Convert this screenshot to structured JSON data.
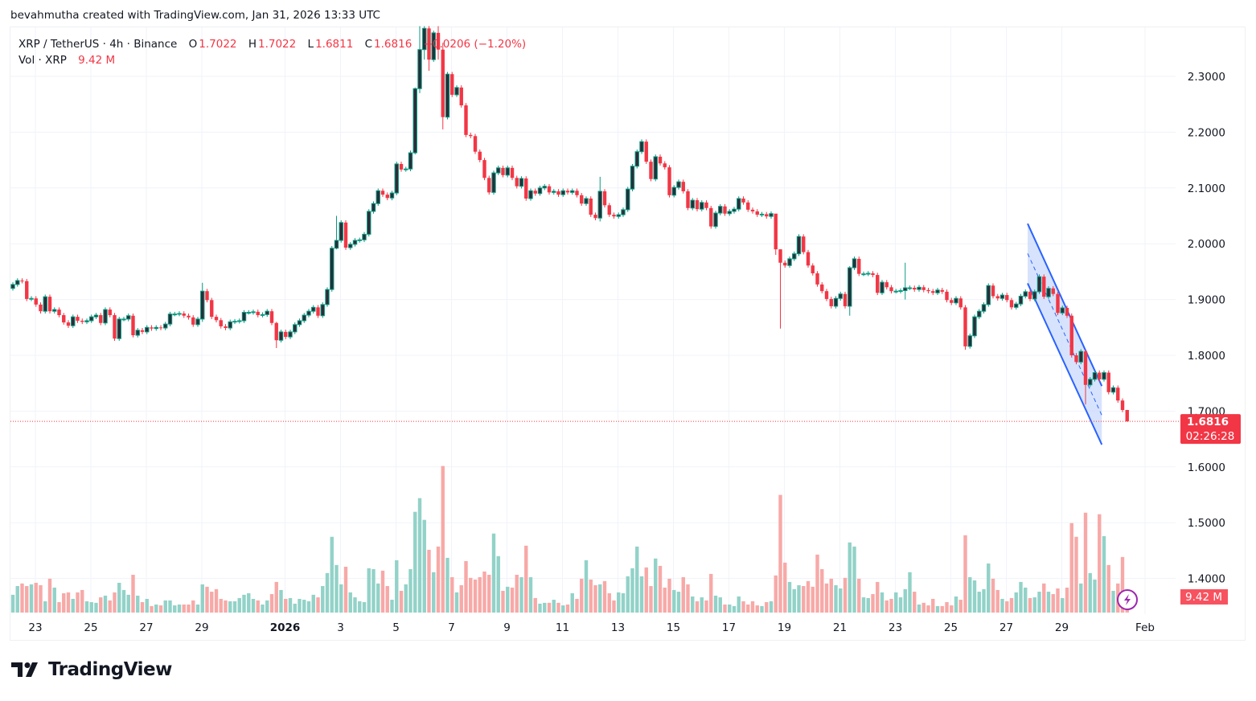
{
  "credit": "bevahmutha created with TradingView.com, Jan 31, 2026 13:33 UTC",
  "legend": {
    "symbol": "XRP / TetherUS · 4h · Binance",
    "o_label": "O",
    "o_value": "1.7022",
    "h_label": "H",
    "h_value": "1.7022",
    "l_label": "L",
    "l_value": "1.6811",
    "c_label": "C",
    "c_value": "1.6816",
    "change": "−0.0206 (−1.20%)",
    "vol_label": "Vol · XRP",
    "vol_value": "9.42 M"
  },
  "logo_text": "TradingView",
  "colors": {
    "up": "#089981",
    "up_body": "#2a2e39",
    "down": "#f23645",
    "vol_up": "#92d2c8",
    "vol_down": "#f7a9a7",
    "channel": "#2962ff",
    "channel_fill": "#c9d9fb",
    "last_price": "#f23645",
    "alert_icon": "#9c27b0"
  },
  "chart_data": {
    "type": "candlestick",
    "interval": "4h",
    "first_candle_open": 1.92,
    "close": [
      1.927,
      1.934,
      1.933,
      1.901,
      1.902,
      1.891,
      1.879,
      1.905,
      1.879,
      1.882,
      1.872,
      1.859,
      1.853,
      1.869,
      1.862,
      1.86,
      1.862,
      1.869,
      1.872,
      1.858,
      1.882,
      1.872,
      1.83,
      1.865,
      1.865,
      1.871,
      1.836,
      1.845,
      1.842,
      1.85,
      1.848,
      1.85,
      1.849,
      1.856,
      1.874,
      1.874,
      1.875,
      1.871,
      1.868,
      1.855,
      1.865,
      1.915,
      1.899,
      1.869,
      1.863,
      1.852,
      1.849,
      1.86,
      1.861,
      1.862,
      1.877,
      1.877,
      1.878,
      1.872,
      1.873,
      1.879,
      1.858,
      1.827,
      1.842,
      1.833,
      1.842,
      1.855,
      1.862,
      1.872,
      1.879,
      1.886,
      1.871,
      1.891,
      1.918,
      1.992,
      2.006,
      2.038,
      1.993,
      1.999,
      2.006,
      2.007,
      2.017,
      2.058,
      2.072,
      2.095,
      2.088,
      2.082,
      2.091,
      2.143,
      2.133,
      2.134,
      2.163,
      2.278,
      2.348,
      2.386,
      2.33,
      2.378,
      2.348,
      2.227,
      2.304,
      2.267,
      2.28,
      2.248,
      2.195,
      2.193,
      2.165,
      2.15,
      2.118,
      2.092,
      2.127,
      2.136,
      2.123,
      2.136,
      2.118,
      2.103,
      2.117,
      2.081,
      2.095,
      2.09,
      2.1,
      2.103,
      2.092,
      2.094,
      2.088,
      2.095,
      2.092,
      2.095,
      2.087,
      2.072,
      2.081,
      2.052,
      2.046,
      2.094,
      2.069,
      2.052,
      2.049,
      2.052,
      2.061,
      2.098,
      2.139,
      2.165,
      2.183,
      2.147,
      2.116,
      2.156,
      2.144,
      2.137,
      2.087,
      2.101,
      2.111,
      2.094,
      2.064,
      2.078,
      2.062,
      2.074,
      2.064,
      2.031,
      2.055,
      2.067,
      2.054,
      2.058,
      2.062,
      2.081,
      2.074,
      2.061,
      2.058,
      2.052,
      2.053,
      2.049,
      2.054,
      1.99,
      1.966,
      1.961,
      1.973,
      1.982,
      2.013,
      1.985,
      1.961,
      1.947,
      1.927,
      1.915,
      1.901,
      1.888,
      1.902,
      1.91,
      1.888,
      1.957,
      1.973,
      1.946,
      1.946,
      1.947,
      1.944,
      1.912,
      1.931,
      1.922,
      1.915,
      1.915,
      1.916,
      1.921,
      1.921,
      1.918,
      1.922,
      1.917,
      1.915,
      1.912,
      1.917,
      1.914,
      1.899,
      1.894,
      1.902,
      1.886,
      1.816,
      1.835,
      1.869,
      1.879,
      1.891,
      1.925,
      1.906,
      1.902,
      1.908,
      1.899,
      1.886,
      1.892,
      1.906,
      1.914,
      1.901,
      1.914,
      1.941,
      1.905,
      1.92,
      1.91,
      1.876,
      1.885,
      1.871,
      1.8,
      1.788,
      1.807,
      1.747,
      1.757,
      1.769,
      1.757,
      1.769,
      1.734,
      1.742,
      1.719,
      1.702,
      1.6816
    ],
    "wicks": {
      "42": [
        1.93,
        1.86
      ],
      "58": [
        1.86,
        1.813
      ],
      "71": [
        2.05,
        1.99
      ],
      "88": [
        2.28,
        2.16
      ],
      "89": [
        2.39,
        2.27
      ],
      "90": [
        2.39,
        2.33
      ],
      "91": [
        2.39,
        2.31
      ],
      "93": [
        2.39,
        2.33
      ],
      "94": [
        2.36,
        2.205
      ],
      "128": [
        2.12,
        2.04
      ],
      "166": [
        2.05,
        1.98
      ],
      "167": [
        1.99,
        1.848
      ],
      "182": [
        1.96,
        1.871
      ],
      "194": [
        1.966,
        1.9
      ],
      "207": [
        1.89,
        1.81
      ],
      "233": [
        1.81,
        1.712
      ],
      "242": [
        1.7022,
        1.6811
      ]
    },
    "volume_millions": [
      10.4,
      15.5,
      17.0,
      15.5,
      16.5,
      17.4,
      16.0,
      6.6,
      19.8,
      14.6,
      6.1,
      11.3,
      11.8,
      8.0,
      11.8,
      13.2,
      6.6,
      6.1,
      5.7,
      8.9,
      9.9,
      7.1,
      11.8,
      17.4,
      13.2,
      10.4,
      22.1,
      9.9,
      6.1,
      8.0,
      3.8,
      4.7,
      4.2,
      7.1,
      7.1,
      4.2,
      4.7,
      4.7,
      4.7,
      7.1,
      4.7,
      16.5,
      15.1,
      12.2,
      13.7,
      8.0,
      7.1,
      6.6,
      6.6,
      8.5,
      10.4,
      11.3,
      8.0,
      7.1,
      4.7,
      7.1,
      10.8,
      17.9,
      13.2,
      8.0,
      8.5,
      5.2,
      8.0,
      7.5,
      6.6,
      10.4,
      8.9,
      15.5,
      23.1,
      44.3,
      27.8,
      16.5,
      26.8,
      11.8,
      8.9,
      6.6,
      6.1,
      25.9,
      25.4,
      17.0,
      24.5,
      15.5,
      7.5,
      30.6,
      12.7,
      16.5,
      25.4,
      58.9,
      66.9,
      54.2,
      36.7,
      23.6,
      38.6,
      85.7,
      32.0,
      20.7,
      11.8,
      16.0,
      30.1,
      20.3,
      19.3,
      20.7,
      24.0,
      22.1,
      46.2,
      33.0,
      12.7,
      15.1,
      14.6,
      22.1,
      20.7,
      39.1,
      20.7,
      8.5,
      5.2,
      5.7,
      5.7,
      7.5,
      5.7,
      4.2,
      4.7,
      11.3,
      8.0,
      19.8,
      30.6,
      19.3,
      16.0,
      16.5,
      18.4,
      11.3,
      7.1,
      11.8,
      11.3,
      21.2,
      25.9,
      38.6,
      21.2,
      26.4,
      15.5,
      31.6,
      27.3,
      14.6,
      19.8,
      13.2,
      12.2,
      20.7,
      16.5,
      9.4,
      6.6,
      8.9,
      7.1,
      22.6,
      9.9,
      8.9,
      4.7,
      4.7,
      3.8,
      9.4,
      6.6,
      4.7,
      6.6,
      4.2,
      3.8,
      6.1,
      6.6,
      21.7,
      68.8,
      29.2,
      17.9,
      13.7,
      16.0,
      15.5,
      18.4,
      15.1,
      33.9,
      25.4,
      17.0,
      19.8,
      16.0,
      14.1,
      20.3,
      41.0,
      38.6,
      19.8,
      8.9,
      8.5,
      10.8,
      17.9,
      11.8,
      7.1,
      8.0,
      11.8,
      8.9,
      13.7,
      23.6,
      12.2,
      4.7,
      5.7,
      4.2,
      8.0,
      3.8,
      3.8,
      6.1,
      4.2,
      9.4,
      7.5,
      45.2,
      20.7,
      18.8,
      12.2,
      13.7,
      28.7,
      19.8,
      13.2,
      8.0,
      6.6,
      8.5,
      11.8,
      17.9,
      14.6,
      8.5,
      8.9,
      12.2,
      17.0,
      12.2,
      10.8,
      14.1,
      8.5,
      14.6,
      52.3,
      44.3,
      17.0,
      58.4,
      23.1,
      19.3,
      57.5,
      44.7,
      27.8,
      12.7,
      17.0,
      32.5,
      9.42
    ],
    "price_axis": {
      "ticks": [
        "2.3000",
        "2.2000",
        "2.1000",
        "2.0000",
        "1.9000",
        "1.8000",
        "1.7000",
        "1.6000",
        "1.5000",
        "1.4000"
      ]
    },
    "time_axis": {
      "ticks": [
        {
          "date": "2025-12-23",
          "label": "23"
        },
        {
          "date": "2025-12-25",
          "label": "25"
        },
        {
          "date": "2025-12-27",
          "label": "27"
        },
        {
          "date": "2025-12-29",
          "label": "29"
        },
        {
          "date": "2026-01-01",
          "label": "2026",
          "bold": true
        },
        {
          "date": "2026-01-03",
          "label": "3"
        },
        {
          "date": "2026-01-05",
          "label": "5"
        },
        {
          "date": "2026-01-07",
          "label": "7"
        },
        {
          "date": "2026-01-09",
          "label": "9"
        },
        {
          "date": "2026-01-11",
          "label": "11"
        },
        {
          "date": "2026-01-13",
          "label": "13"
        },
        {
          "date": "2026-01-15",
          "label": "15"
        },
        {
          "date": "2026-01-17",
          "label": "17"
        },
        {
          "date": "2026-01-19",
          "label": "19"
        },
        {
          "date": "2026-01-21",
          "label": "21"
        },
        {
          "date": "2026-01-23",
          "label": "23"
        },
        {
          "date": "2026-01-25",
          "label": "25"
        },
        {
          "date": "2026-01-27",
          "label": "27"
        },
        {
          "date": "2026-01-29",
          "label": "29"
        },
        {
          "date": "2026-02-01",
          "label": "Feb"
        }
      ]
    },
    "last_price": {
      "price": "1.6816",
      "countdown": "02:26:28"
    },
    "last_volume_label": "9.42 M",
    "channel": {
      "start_candle": 221,
      "end_candle": 236,
      "upper": [
        2.036,
        1.745
      ],
      "lower": [
        1.929,
        1.64
      ]
    },
    "grid": true
  }
}
